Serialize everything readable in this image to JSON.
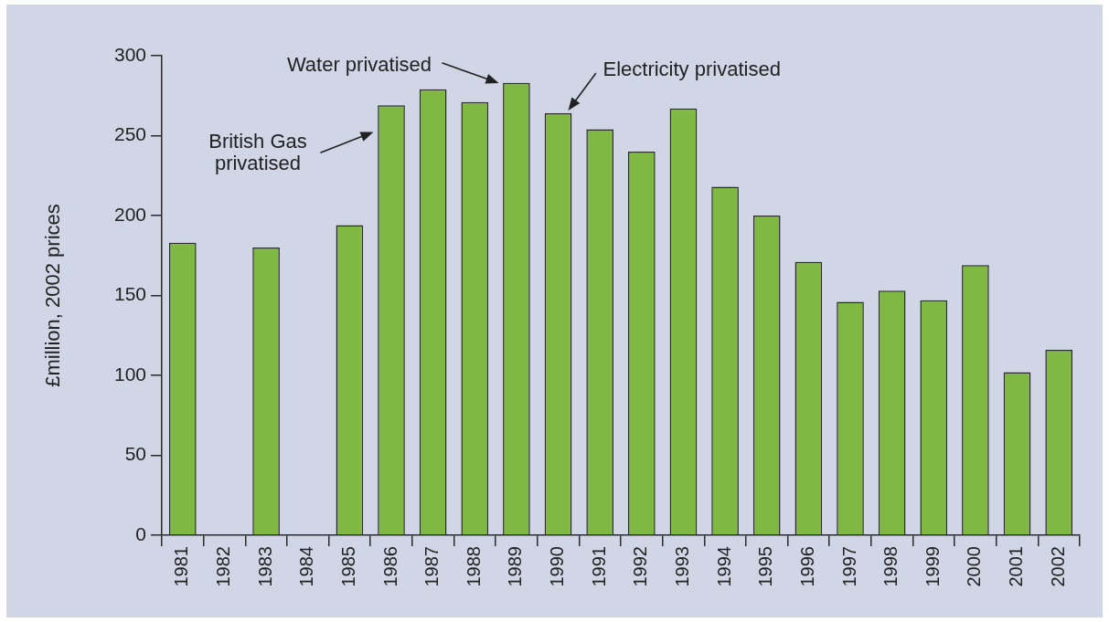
{
  "chart_data": {
    "type": "bar",
    "categories": [
      "1981",
      "1982",
      "1983",
      "1984",
      "1985",
      "1986",
      "1987",
      "1988",
      "1989",
      "1990",
      "1991",
      "1992",
      "1993",
      "1994",
      "1995",
      "1996",
      "1997",
      "1998",
      "1999",
      "2000",
      "2001",
      "2002"
    ],
    "values": [
      183,
      null,
      180,
      null,
      194,
      269,
      279,
      271,
      283,
      264,
      254,
      240,
      267,
      218,
      200,
      171,
      146,
      153,
      147,
      169,
      102,
      116
    ],
    "color": "#7fb842",
    "ylabel": "£million, 2002 prices",
    "ylim": [
      0,
      300
    ],
    "yticks": [
      0,
      50,
      100,
      150,
      200,
      250,
      300
    ],
    "annotations": [
      "British Gas privatised",
      "Water privatised",
      "Electricity privatised"
    ]
  }
}
